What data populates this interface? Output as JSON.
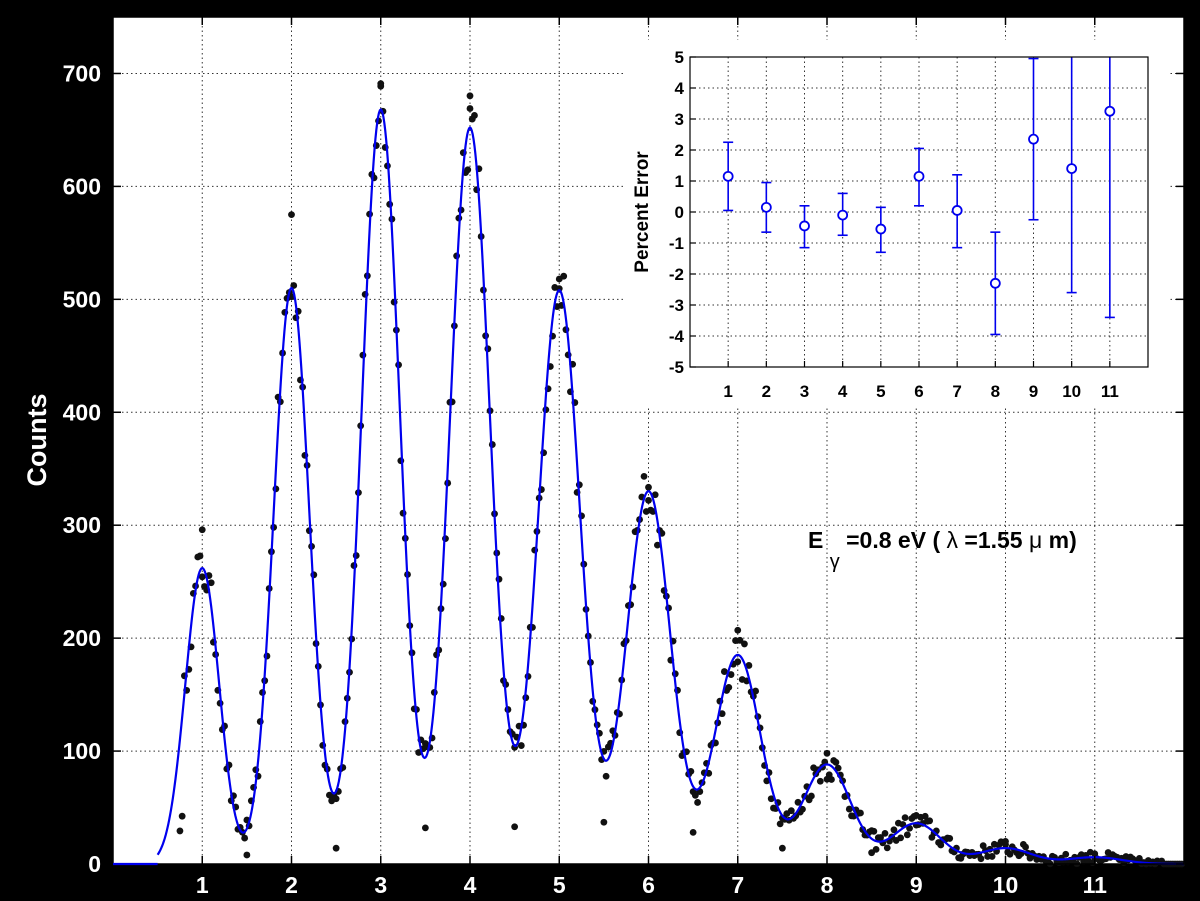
{
  "colors": {
    "background": "#000000",
    "plot_background": "#ffffff",
    "fit_line": "#0000ee",
    "data_points": "#111111",
    "inset_markers": "#0000ee",
    "grid": "#9a9a9a"
  },
  "chart_data": [
    {
      "type": "scatter",
      "role": "main",
      "ylabel": "Counts",
      "xlim": [
        0,
        12
      ],
      "ylim": [
        0,
        750
      ],
      "x_ticks": [
        1,
        2,
        3,
        4,
        5,
        6,
        7,
        8,
        9,
        10,
        11
      ],
      "x_tick_labels": [
        "1",
        "2",
        "3",
        "4",
        "5",
        "6",
        "7",
        "8",
        "9",
        "10",
        "11"
      ],
      "y_ticks": [
        0,
        100,
        200,
        300,
        400,
        500,
        600,
        700
      ],
      "y_tick_labels": [
        "0",
        "100",
        "200",
        "300",
        "400",
        "500",
        "600",
        "700"
      ],
      "grid": true,
      "annotation": {
        "parts": [
          "E",
          "γ",
          "=0.8 eV (",
          "λ",
          "=1.55 ",
          "μ",
          "m)"
        ]
      },
      "fit_model": {
        "kind": "sum of gaussian peaks",
        "peak_centers": [
          1,
          2,
          3,
          4,
          5,
          6,
          7,
          8,
          9,
          10,
          11
        ],
        "peak_heights": [
          262,
          510,
          668,
          652,
          508,
          330,
          185,
          88,
          36,
          14,
          6
        ],
        "peak_sigma": 0.19,
        "sigma_growth_per_peak": 0.011,
        "x_start": 0.5,
        "x_end": 12
      },
      "scatter_data": {
        "sampling": "~40 points per unit over 0.75–12, scattered around the fit",
        "peak_max_points": [
          {
            "x": 1,
            "y": 296
          },
          {
            "x": 2,
            "y": 575
          },
          {
            "x": 3,
            "y": 691
          },
          {
            "x": 4,
            "y": 669
          },
          {
            "x": 5,
            "y": 518
          },
          {
            "x": 6,
            "y": 322
          },
          {
            "x": 7,
            "y": 207
          },
          {
            "x": 8,
            "y": 98
          },
          {
            "x": 9,
            "y": 43
          },
          {
            "x": 10,
            "y": 20
          },
          {
            "x": 11,
            "y": 9
          }
        ],
        "valley_min_points": [
          {
            "x": 1.5,
            "y": 8
          },
          {
            "x": 2.5,
            "y": 14
          },
          {
            "x": 3.5,
            "y": 32
          },
          {
            "x": 4.5,
            "y": 33
          },
          {
            "x": 5.5,
            "y": 37
          },
          {
            "x": 6.5,
            "y": 28
          },
          {
            "x": 7.5,
            "y": 14
          },
          {
            "x": 8.5,
            "y": 10
          },
          {
            "x": 9.5,
            "y": 5
          }
        ]
      }
    },
    {
      "type": "scatter",
      "role": "inset",
      "ylabel": "Percent Error",
      "xlim": [
        0,
        12
      ],
      "ylim": [
        -5,
        5
      ],
      "x_ticks": [
        1,
        2,
        3,
        4,
        5,
        6,
        7,
        8,
        9,
        10,
        11
      ],
      "x_tick_labels": [
        "1",
        "2",
        "3",
        "4",
        "5",
        "6",
        "7",
        "8",
        "9",
        "10",
        "11"
      ],
      "y_ticks": [
        -5,
        -4,
        -3,
        -2,
        -1,
        0,
        1,
        2,
        3,
        4,
        5
      ],
      "y_tick_labels": [
        "-5",
        "-4",
        "-3",
        "-2",
        "-1",
        "0",
        "1",
        "2",
        "3",
        "4",
        "5"
      ],
      "grid": true,
      "points": [
        {
          "x": 1,
          "y": 1.15,
          "lo": 0.05,
          "hi": 2.25
        },
        {
          "x": 2,
          "y": 0.15,
          "lo": -0.65,
          "hi": 0.95
        },
        {
          "x": 3,
          "y": -0.45,
          "lo": -1.15,
          "hi": 0.2
        },
        {
          "x": 4,
          "y": -0.1,
          "lo": -0.75,
          "hi": 0.6
        },
        {
          "x": 5,
          "y": -0.55,
          "lo": -1.3,
          "hi": 0.15
        },
        {
          "x": 6,
          "y": 1.15,
          "lo": 0.2,
          "hi": 2.05
        },
        {
          "x": 7,
          "y": 0.05,
          "lo": -1.15,
          "hi": 1.2
        },
        {
          "x": 8,
          "y": -2.3,
          "lo": -3.95,
          "hi": -0.65
        },
        {
          "x": 9,
          "y": 2.35,
          "lo": -0.25,
          "hi": 4.95
        },
        {
          "x": 10,
          "y": 1.4,
          "lo": -2.6,
          "hi": 5.0
        },
        {
          "x": 11,
          "y": 3.25,
          "lo": -3.4,
          "hi": 5.0
        }
      ]
    }
  ]
}
